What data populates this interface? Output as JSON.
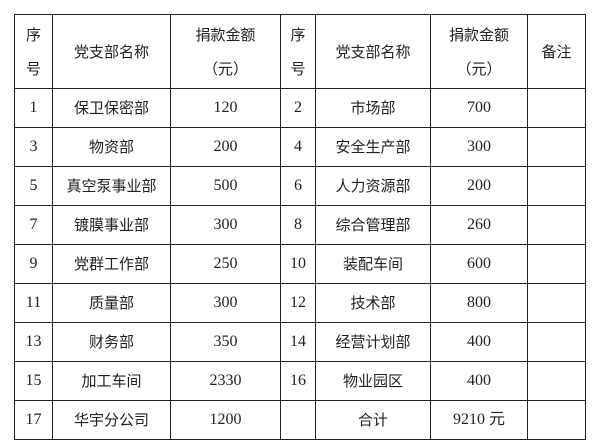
{
  "headers": {
    "seq_1": "序",
    "seq_2": "号",
    "name": "党支部名称",
    "amount_1": "捐款金额",
    "amount_2": "（元）",
    "remark": "备注"
  },
  "rows": [
    {
      "l_no": "1",
      "l_name": "保卫保密部",
      "l_amt": "120",
      "r_no": "2",
      "r_name": "市场部",
      "r_amt": "700",
      "remark": ""
    },
    {
      "l_no": "3",
      "l_name": "物资部",
      "l_amt": "200",
      "r_no": "4",
      "r_name": "安全生产部",
      "r_amt": "300",
      "remark": ""
    },
    {
      "l_no": "5",
      "l_name": "真空泵事业部",
      "l_amt": "500",
      "r_no": "6",
      "r_name": "人力资源部",
      "r_amt": "200",
      "remark": ""
    },
    {
      "l_no": "7",
      "l_name": "镀膜事业部",
      "l_amt": "300",
      "r_no": "8",
      "r_name": "综合管理部",
      "r_amt": "260",
      "remark": ""
    },
    {
      "l_no": "9",
      "l_name": "党群工作部",
      "l_amt": "250",
      "r_no": "10",
      "r_name": "装配车间",
      "r_amt": "600",
      "remark": ""
    },
    {
      "l_no": "11",
      "l_name": "质量部",
      "l_amt": "300",
      "r_no": "12",
      "r_name": "技术部",
      "r_amt": "800",
      "remark": ""
    },
    {
      "l_no": "13",
      "l_name": "财务部",
      "l_amt": "350",
      "r_no": "14",
      "r_name": "经营计划部",
      "r_amt": "400",
      "remark": ""
    },
    {
      "l_no": "15",
      "l_name": "加工车间",
      "l_amt": "2330",
      "r_no": "16",
      "r_name": "物业园区",
      "r_amt": "400",
      "remark": ""
    },
    {
      "l_no": "17",
      "l_name": "华宇分公司",
      "l_amt": "1200",
      "r_no": "",
      "r_name": "合计",
      "r_amt": "9210 元",
      "remark": ""
    }
  ]
}
